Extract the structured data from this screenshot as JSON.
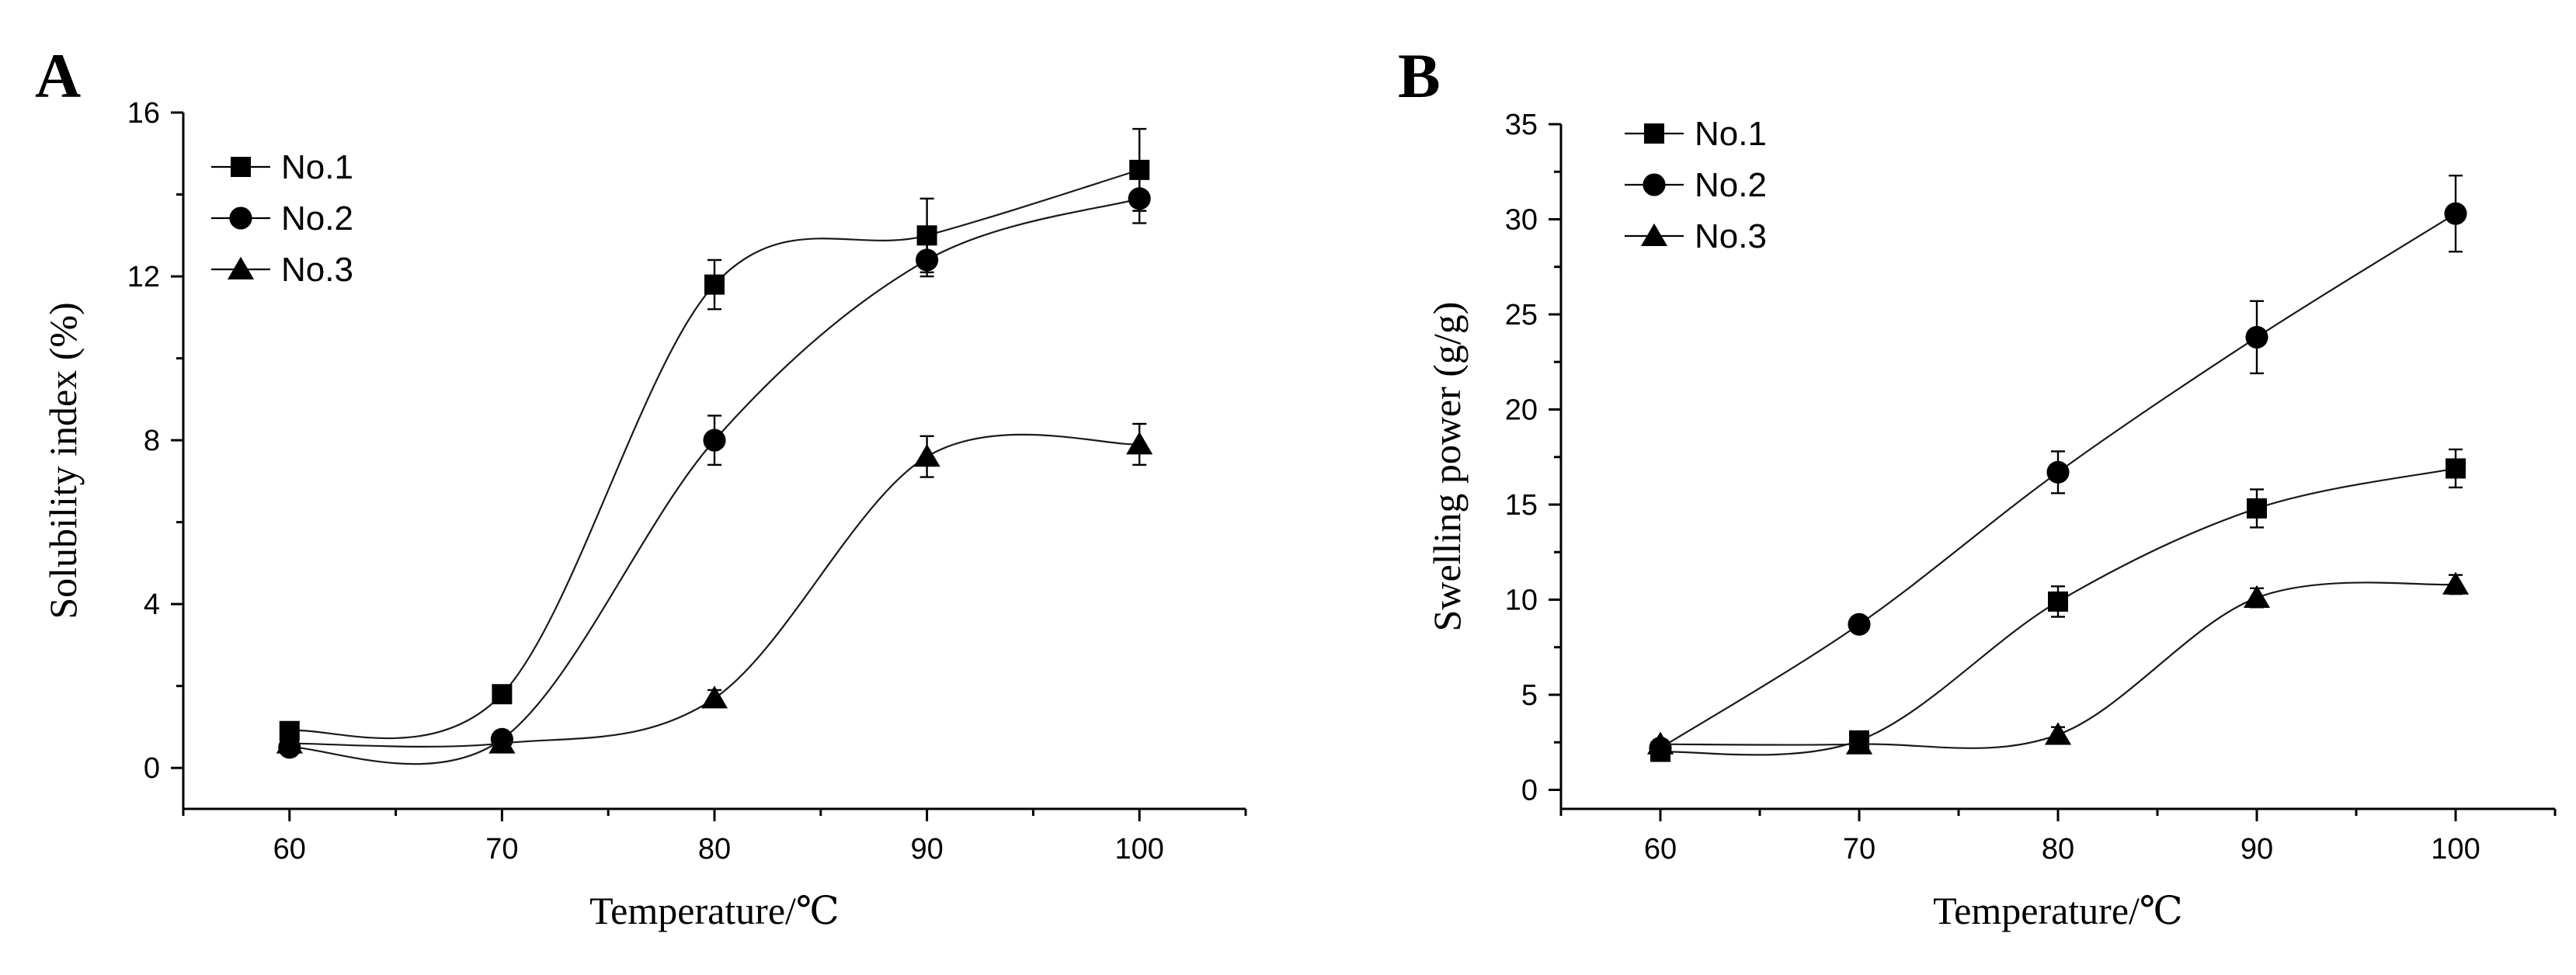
{
  "chart_data": [
    {
      "type": "line",
      "panel_label": "A",
      "title": "",
      "xlabel": "Temperature/℃",
      "ylabel": "Solubility index (%)",
      "xlim": [
        55,
        105
      ],
      "ylim": [
        -1,
        16
      ],
      "xticks": [
        60,
        70,
        80,
        90,
        100
      ],
      "yticks": [
        0,
        4,
        8,
        12,
        16
      ],
      "legend_position": "top-left",
      "x": [
        60,
        70,
        80,
        90,
        100
      ],
      "series": [
        {
          "name": "No.1",
          "marker": "square",
          "values": [
            0.9,
            1.8,
            11.8,
            13.0,
            14.6
          ],
          "errors": [
            0.2,
            0.2,
            0.6,
            0.9,
            1.0
          ]
        },
        {
          "name": "No.2",
          "marker": "circle",
          "values": [
            0.5,
            0.7,
            8.0,
            12.4,
            13.9
          ],
          "errors": [
            0.1,
            0.2,
            0.6,
            0.4,
            0.6
          ]
        },
        {
          "name": "No.3",
          "marker": "triangle",
          "values": [
            0.6,
            0.6,
            1.7,
            7.6,
            7.9
          ],
          "errors": [
            0.1,
            0.1,
            0.2,
            0.5,
            0.5
          ]
        }
      ]
    },
    {
      "type": "line",
      "panel_label": "B",
      "title": "",
      "xlabel": "Temperature/℃",
      "ylabel": "Swelling power (g/g)",
      "xlim": [
        55,
        105
      ],
      "ylim": [
        -1,
        35
      ],
      "xticks": [
        60,
        70,
        80,
        90,
        100
      ],
      "yticks": [
        0,
        5,
        10,
        15,
        20,
        25,
        30,
        35
      ],
      "legend_position": "top-left",
      "x": [
        60,
        70,
        80,
        90,
        100
      ],
      "series": [
        {
          "name": "No.1",
          "marker": "square",
          "values": [
            2.0,
            2.6,
            9.9,
            14.8,
            16.9
          ],
          "errors": [
            0.2,
            0.2,
            0.8,
            1.0,
            1.0
          ]
        },
        {
          "name": "No.2",
          "marker": "circle",
          "values": [
            2.2,
            8.7,
            16.7,
            23.8,
            30.3
          ],
          "errors": [
            0.2,
            0.3,
            1.1,
            1.9,
            2.0
          ]
        },
        {
          "name": "No.3",
          "marker": "triangle",
          "values": [
            2.4,
            2.4,
            2.9,
            10.1,
            10.8
          ],
          "errors": [
            0.2,
            0.2,
            0.4,
            0.5,
            0.5
          ]
        }
      ]
    }
  ]
}
